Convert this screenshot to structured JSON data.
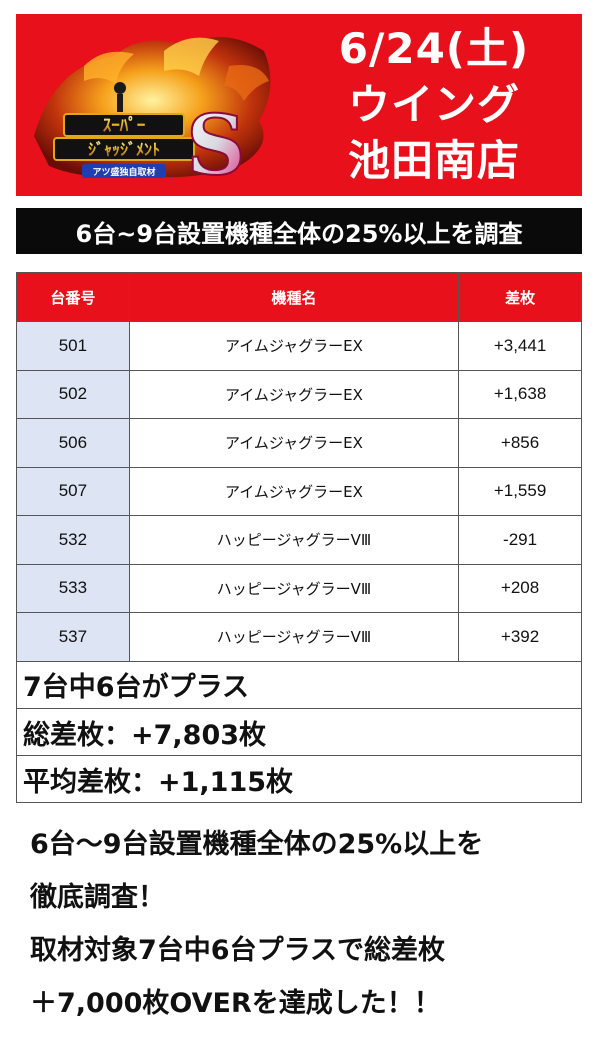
{
  "header": {
    "logo_texts": [
      "ｽｰﾊﾟｰ",
      "ｼﾞｬｯｼﾞﾒﾝﾄ",
      "S",
      "アツ盛独自取材"
    ],
    "date": "6/24(土)",
    "store_line1": "ウイング",
    "store_line2": "池田南店"
  },
  "subtitle": "6台~9台設置機種全体の25%以上を調査",
  "table": {
    "headers": [
      "台番号",
      "機種名",
      "差枚"
    ],
    "rows": [
      {
        "no": "501",
        "name": "アイムジャグラーEX",
        "diff": "+3,441"
      },
      {
        "no": "502",
        "name": "アイムジャグラーEX",
        "diff": "+1,638"
      },
      {
        "no": "506",
        "name": "アイムジャグラーEX",
        "diff": "+856"
      },
      {
        "no": "507",
        "name": "アイムジャグラーEX",
        "diff": "+1,559"
      },
      {
        "no": "532",
        "name": "ハッピージャグラーVⅢ",
        "diff": "-291"
      },
      {
        "no": "533",
        "name": "ハッピージャグラーVⅢ",
        "diff": "+208"
      },
      {
        "no": "537",
        "name": "ハッピージャグラーVⅢ",
        "diff": "+392"
      }
    ]
  },
  "summary": {
    "plus_count": "7台中6台がプラス",
    "total": "総差枚：+7,803枚",
    "average": "平均差枚：+1,115枚"
  },
  "description": [
    "6台～9台設置機種全体の25%以上を",
    "徹底調査！",
    "取材対象7台中6台プラスで総差枚",
    "＋7,000枚OVERを達成した！！"
  ]
}
